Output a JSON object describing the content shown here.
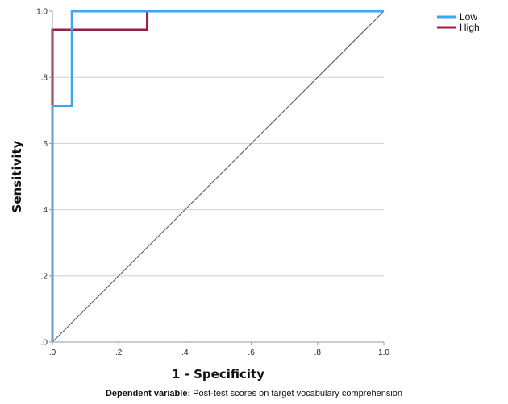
{
  "chart_data": {
    "type": "line",
    "xlabel": "1 - Specificity",
    "ylabel": "Sensitivity",
    "xlim": [
      0,
      1
    ],
    "ylim": [
      0,
      1
    ],
    "x_ticks": [
      ".0",
      ".2",
      ".4",
      ".6",
      ".8",
      "1.0"
    ],
    "y_ticks": [
      ".0",
      ".2",
      ".4",
      ".6",
      ".8",
      "1.0"
    ],
    "grid": "horizontal",
    "legend_position": "top-right",
    "series": [
      {
        "name": "Low",
        "color": "#3aa7f0",
        "points": [
          [
            0,
            0
          ],
          [
            0,
            0.714
          ],
          [
            0.059,
            0.714
          ],
          [
            0.059,
            1.0
          ],
          [
            1.0,
            1.0
          ]
        ]
      },
      {
        "name": "High",
        "color": "#9b1c4a",
        "points": [
          [
            0,
            0
          ],
          [
            0,
            0.944
          ],
          [
            0.286,
            0.944
          ],
          [
            0.286,
            1.0
          ],
          [
            1.0,
            1.0
          ]
        ]
      }
    ],
    "reference_line": {
      "color": "#555555",
      "points": [
        [
          0,
          0
        ],
        [
          1,
          1
        ]
      ]
    }
  },
  "footnote": {
    "label": "Dependent variable:",
    "text": "Post-test scores on target vocabulary comprehension"
  }
}
